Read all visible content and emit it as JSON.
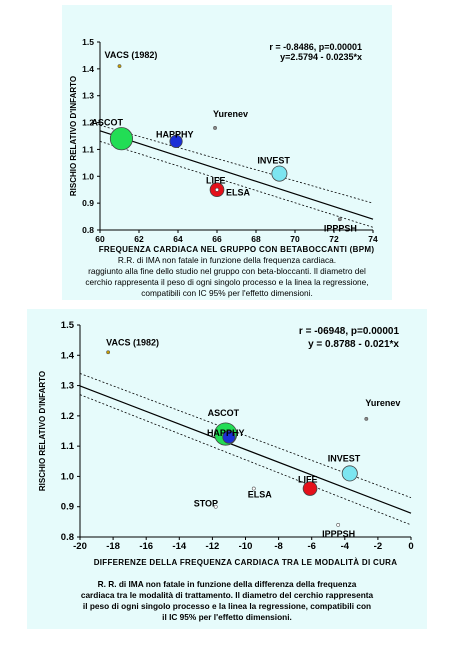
{
  "charts": [
    {
      "xlabel": "FREQUENZA CARDIACA NEL GRUPPO CON BETABOCCANTI (BPM)",
      "ylabel": "RISCHIO RELATIVO D'INFARTO",
      "stats_line1": "r = -0.8486, p=0.00001",
      "stats_line2": "y=2.5794 - 0.0235*x",
      "caption": [
        "R.R. di IMA non fatale in funzione della frequenza cardiaca.",
        "raggiunto alla fine dello studio nel gruppo con beta-bloccanti. Il diametro del",
        "cerchio rappresenta il peso di ogni singolo processo e la linea la regressione,",
        "compatibili con IC 95% per l'effetto dimensioni."
      ]
    },
    {
      "xlabel": "DIFFERENZE DELLA FREQUENZA CARDIACA TRA LE MODALITÀ DI CURA",
      "ylabel": "RISCHIO RELATIVO D'INFARTO",
      "stats_line1": "r = -06948, p=0.00001",
      "stats_line2": "y = 0.8788 - 0.021*x",
      "caption": [
        "R. R. di IMA non fatale in funzione della differenza della frequenza",
        "cardiaca tra le modalità di trattamento. Il diametro del cerchio rappresenta",
        "il peso di ogni singolo processo e la linea la regressione, compatibili con",
        "il IC 95% per l'effetto dimensioni."
      ]
    }
  ],
  "chart_data": [
    {
      "type": "scatter",
      "xlabel": "FREQUENZA CARDIACA NEL GRUPPO CON BETABOCCANTI (BPM)",
      "ylabel": "RISCHIO RELATIVO D'INFARTO",
      "xlim": [
        60,
        74
      ],
      "ylim": [
        0.8,
        1.5
      ],
      "xticks": [
        "60",
        "62",
        "64",
        "66",
        "68",
        "70",
        "72",
        "74"
      ],
      "yticks": [
        "0.8",
        "0.9",
        "1.0",
        "1.1",
        "1.2",
        "1.3",
        "1.4",
        "1.5"
      ],
      "regression": {
        "intercept": 2.5794,
        "slope": -0.0235
      },
      "ci_band": {
        "x": [
          60,
          74
        ],
        "upper": [
          1.19,
          0.9
        ],
        "lower": [
          1.13,
          0.81
        ]
      },
      "points": [
        {
          "label": "VACS (1982)",
          "x": 61.0,
          "y": 1.41,
          "weight": 1,
          "color": "#c8a000"
        },
        {
          "label": "Yurenev",
          "x": 65.9,
          "y": 1.18,
          "weight": 1,
          "color": "#888888"
        },
        {
          "label": "ASCOT",
          "x": 61.1,
          "y": 1.14,
          "weight": 13,
          "color": "#22dd55"
        },
        {
          "label": "HAPPHY",
          "x": 63.9,
          "y": 1.13,
          "weight": 4,
          "color": "#1b2fd6"
        },
        {
          "label": "INVEST",
          "x": 69.2,
          "y": 1.01,
          "weight": 6,
          "color": "#7ce5f0"
        },
        {
          "label": "LIFE",
          "x": 66.0,
          "y": 0.95,
          "weight": 5,
          "color": "#e4101a"
        },
        {
          "label": "ELSA",
          "x": 66.0,
          "y": 0.95,
          "weight": 1,
          "color": "#ffffff"
        },
        {
          "label": "IPPPSH",
          "x": 72.3,
          "y": 0.84,
          "weight": 1,
          "color": "#888888"
        }
      ]
    },
    {
      "type": "scatter",
      "xlabel": "DIFFERENZE DELLA FREQUENZA CARDIACA TRA LE MODALITÀ DI CURA",
      "ylabel": "RISCHIO RELATIVO D'INFARTO",
      "xlim": [
        -20,
        0
      ],
      "ylim": [
        0.8,
        1.5
      ],
      "xticks": [
        "-20",
        "-18",
        "-16",
        "-14",
        "-12",
        "-10",
        "-8",
        "-6",
        "-4",
        "-2",
        "0"
      ],
      "yticks": [
        "0.8",
        "0.9",
        "1.0",
        "1.1",
        "1.2",
        "1.3",
        "1.4",
        "1.5"
      ],
      "regression": {
        "intercept": 0.8788,
        "slope": -0.021
      },
      "ci_band": {
        "x": [
          -20,
          0
        ],
        "upper": [
          1.34,
          0.93
        ],
        "lower": [
          1.27,
          0.84
        ]
      },
      "points": [
        {
          "label": "VACS (1982)",
          "x": -18.3,
          "y": 1.41,
          "weight": 1,
          "color": "#c8a000"
        },
        {
          "label": "Yurenev",
          "x": -2.7,
          "y": 1.19,
          "weight": 1,
          "color": "#888888"
        },
        {
          "label": "ASCOT",
          "x": -11.2,
          "y": 1.14,
          "weight": 13,
          "color": "#22dd55"
        },
        {
          "label": "HAPPHY",
          "x": -11.0,
          "y": 1.13,
          "weight": 4,
          "color": "#1b2fd6"
        },
        {
          "label": "INVEST",
          "x": -3.7,
          "y": 1.01,
          "weight": 6,
          "color": "#7ce5f0"
        },
        {
          "label": "LIFE",
          "x": -6.1,
          "y": 0.96,
          "weight": 5,
          "color": "#e4101a"
        },
        {
          "label": "ELSA",
          "x": -9.5,
          "y": 0.96,
          "weight": 1,
          "color": "#ffffff"
        },
        {
          "label": "STOP",
          "x": -11.8,
          "y": 0.9,
          "weight": 1,
          "color": "#ffffff"
        },
        {
          "label": "IPPPSH",
          "x": -4.4,
          "y": 0.84,
          "weight": 1,
          "color": "#ffffff"
        }
      ]
    }
  ]
}
